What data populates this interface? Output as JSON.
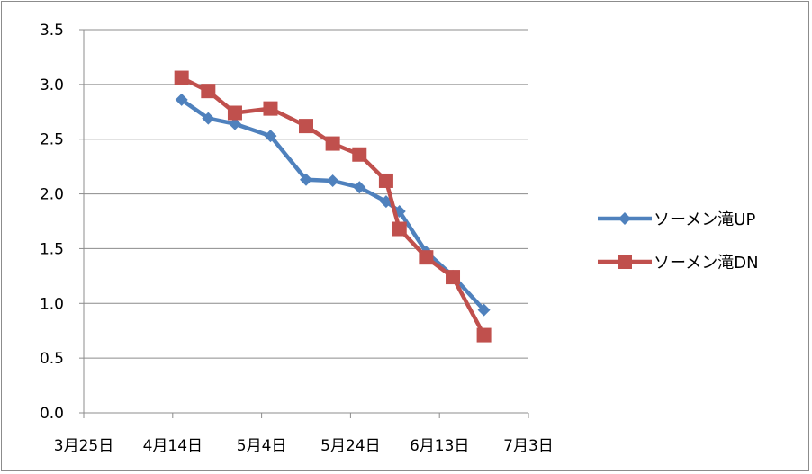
{
  "chart_data": {
    "type": "line",
    "title": "",
    "xlabel": "",
    "ylabel": "",
    "x_range": [
      "3月25日",
      "7月3日"
    ],
    "x_ticks": [
      "3月25日",
      "4月14日",
      "5月4日",
      "5月24日",
      "6月13日",
      "7月3日"
    ],
    "ylim": [
      0,
      3.5
    ],
    "y_ticks": [
      "0.0",
      "0.5",
      "1.0",
      "1.5",
      "2.0",
      "2.5",
      "3.0",
      "3.5"
    ],
    "grid": "horizontal",
    "legend_position": "right",
    "series": [
      {
        "name": "ソーメン滝UP",
        "color": "#4f81bd",
        "marker": "diamond",
        "points": [
          [
            "4月16日",
            2.86
          ],
          [
            "4月22日",
            2.69
          ],
          [
            "4月28日",
            2.64
          ],
          [
            "5月6日",
            2.53
          ],
          [
            "5月14日",
            2.13
          ],
          [
            "5月20日",
            2.12
          ],
          [
            "5月26日",
            2.06
          ],
          [
            "6月1日",
            1.93
          ],
          [
            "6月4日",
            1.84
          ],
          [
            "6月10日",
            1.47
          ],
          [
            "6月16日",
            1.25
          ],
          [
            "6月23日",
            0.94
          ]
        ]
      },
      {
        "name": "ソーメン滝DN",
        "color": "#c0504d",
        "marker": "square",
        "points": [
          [
            "4月16日",
            3.06
          ],
          [
            "4月22日",
            2.94
          ],
          [
            "4月28日",
            2.74
          ],
          [
            "5月6日",
            2.78
          ],
          [
            "5月14日",
            2.62
          ],
          [
            "5月20日",
            2.46
          ],
          [
            "5月26日",
            2.36
          ],
          [
            "6月1日",
            2.12
          ],
          [
            "6月4日",
            1.68
          ],
          [
            "6月10日",
            1.42
          ],
          [
            "6月16日",
            1.24
          ],
          [
            "6月23日",
            0.71
          ]
        ]
      }
    ]
  }
}
